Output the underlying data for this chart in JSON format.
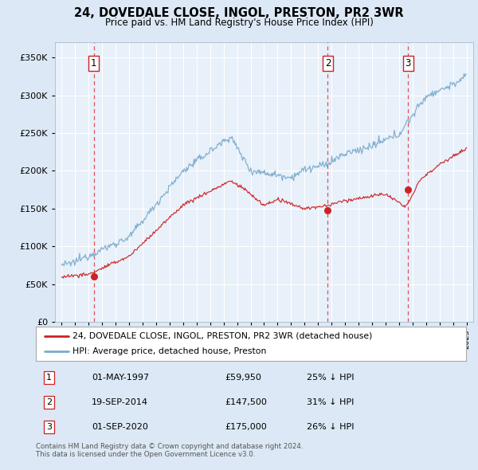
{
  "title": "24, DOVEDALE CLOSE, INGOL, PRESTON, PR2 3WR",
  "subtitle": "Price paid vs. HM Land Registry's House Price Index (HPI)",
  "footer": "Contains HM Land Registry data © Crown copyright and database right 2024.\nThis data is licensed under the Open Government Licence v3.0.",
  "legend_line1": "24, DOVEDALE CLOSE, INGOL, PRESTON, PR2 3WR (detached house)",
  "legend_line2": "HPI: Average price, detached house, Preston",
  "transaction_years": [
    1997.37,
    2014.72,
    2020.67
  ],
  "transaction_prices": [
    59950,
    147500,
    175000
  ],
  "table_data": [
    [
      1,
      "01-MAY-1997",
      "£59,950",
      "25% ↓ HPI"
    ],
    [
      2,
      "19-SEP-2014",
      "£147,500",
      "31% ↓ HPI"
    ],
    [
      3,
      "01-SEP-2020",
      "£175,000",
      "26% ↓ HPI"
    ]
  ],
  "red_line_color": "#cc2222",
  "blue_line_color": "#7aabcc",
  "background_color": "#dce8f5",
  "plot_bg_color": "#e8f0fa",
  "grid_color": "#ffffff",
  "vline_color": "#dd4444",
  "ylim": [
    0,
    370000
  ],
  "yticks": [
    0,
    50000,
    100000,
    150000,
    200000,
    250000,
    300000,
    350000
  ],
  "xlim_start": 1994.5,
  "xlim_end": 2025.5,
  "xticks": [
    1995,
    1996,
    1997,
    1998,
    1999,
    2000,
    2001,
    2002,
    2003,
    2004,
    2005,
    2006,
    2007,
    2008,
    2009,
    2010,
    2011,
    2012,
    2013,
    2014,
    2015,
    2016,
    2017,
    2018,
    2019,
    2020,
    2021,
    2022,
    2023,
    2024,
    2025
  ]
}
